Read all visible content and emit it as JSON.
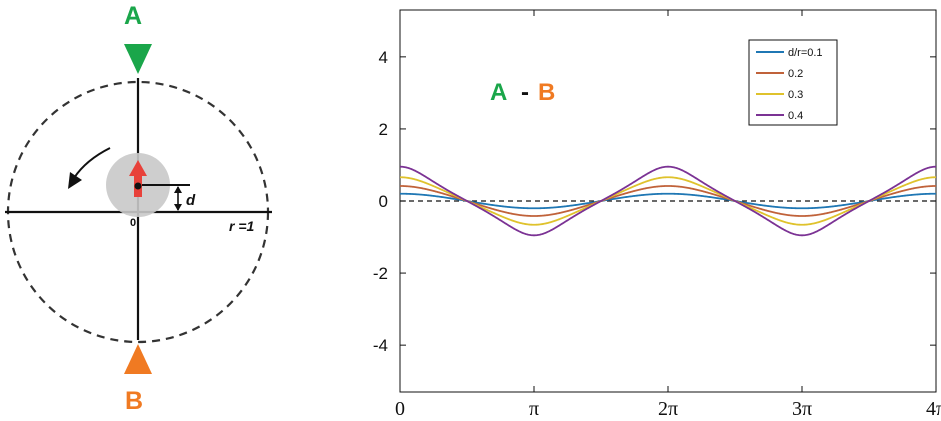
{
  "diagram": {
    "label_a": "A",
    "label_b": "B",
    "label_d": "d",
    "label_r": "r =1",
    "label_origin": "0",
    "colors": {
      "a": "#1aa64a",
      "b": "#f07a22",
      "arrow_red": "#e8413a",
      "disk": "#c9c9c9",
      "line": "#111111",
      "circle": "#333333"
    }
  },
  "chart_data": {
    "type": "line",
    "annotation": {
      "a": "A",
      "dash": "-",
      "b": "B"
    },
    "x_range": [
      0,
      12.566
    ],
    "ylim": [
      -5.3,
      5.3
    ],
    "x_ticks": [
      {
        "value": 0,
        "label": "0"
      },
      {
        "value": 3.1416,
        "label": "π"
      },
      {
        "value": 6.2832,
        "label": "2π"
      },
      {
        "value": 9.4248,
        "label": "3π"
      },
      {
        "value": 12.5664,
        "label": "4π"
      }
    ],
    "y_ticks": [
      -4,
      -2,
      0,
      2,
      4
    ],
    "reference_line": {
      "y": 0,
      "style": "dashed"
    },
    "legend_position": "top-right",
    "series": [
      {
        "name": "d/r=0.1",
        "d": 0.1,
        "color": "#1f77b4"
      },
      {
        "name": "0.2",
        "d": 0.2,
        "color": "#c0623a"
      },
      {
        "name": "0.3",
        "d": 0.3,
        "color": "#dfc22c"
      },
      {
        "name": "0.4",
        "d": 0.4,
        "color": "#7b3294"
      }
    ]
  }
}
